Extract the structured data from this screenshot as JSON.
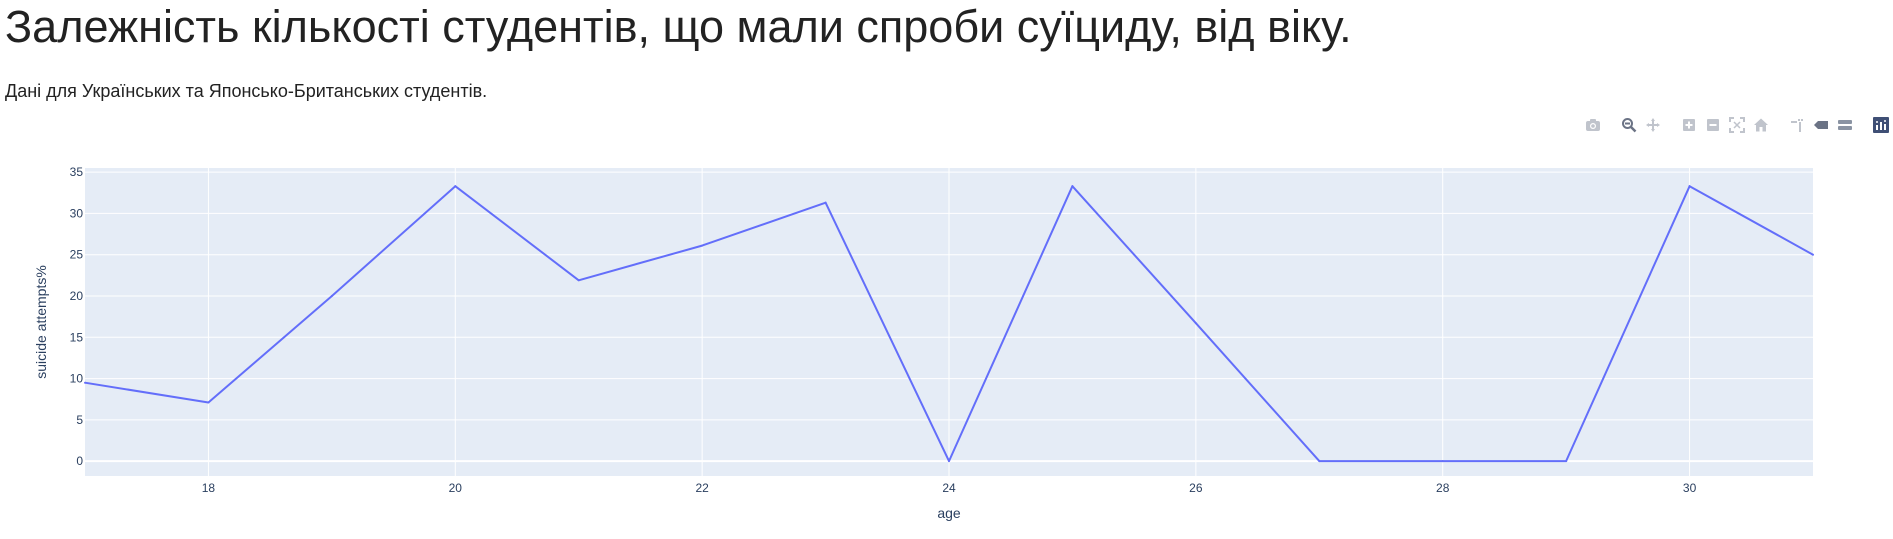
{
  "page": {
    "title": "Залежність кількості студентів, що мали спроби суїциду, від віку.",
    "subtitle": "Дані для Українських та Японсько-Британських студентів."
  },
  "modebar": {
    "buttons": [
      {
        "name": "camera-icon"
      },
      {
        "name": "zoom-icon"
      },
      {
        "name": "pan-icon"
      },
      {
        "name": "zoom-in-icon"
      },
      {
        "name": "zoom-out-icon"
      },
      {
        "name": "autoscale-icon"
      },
      {
        "name": "home-icon"
      },
      {
        "name": "spike-lines-icon"
      },
      {
        "name": "hover-closest-icon"
      },
      {
        "name": "hover-compare-icon"
      },
      {
        "name": "plotly-logo-icon"
      }
    ]
  },
  "colors": {
    "plot_bg": "#e5ecf6",
    "grid": "#ffffff",
    "line": "#636efa",
    "text": "#2a3f5f",
    "modebar_icon": "#c0c4cc",
    "modebar_active": "#8a93a3",
    "logo_bg": "#3f4f75"
  },
  "chart_data": {
    "type": "line",
    "title": "",
    "xlabel": "age",
    "ylabel": "suicide attempts%",
    "xlim": [
      17,
      31
    ],
    "ylim": [
      -1.8,
      35.5
    ],
    "x_ticks": [
      18,
      20,
      22,
      24,
      26,
      28,
      30
    ],
    "y_ticks": [
      0,
      5,
      10,
      15,
      20,
      25,
      30,
      35
    ],
    "grid": true,
    "series": [
      {
        "name": "suicide attempts%",
        "x": [
          17,
          18,
          19,
          20,
          21,
          22,
          23,
          24,
          25,
          26,
          27,
          28,
          29,
          30,
          31
        ],
        "y": [
          9.5,
          7.1,
          20.0,
          33.3,
          21.9,
          26.1,
          31.3,
          0,
          33.3,
          16.7,
          0,
          0,
          0,
          33.3,
          25.0
        ]
      }
    ]
  }
}
